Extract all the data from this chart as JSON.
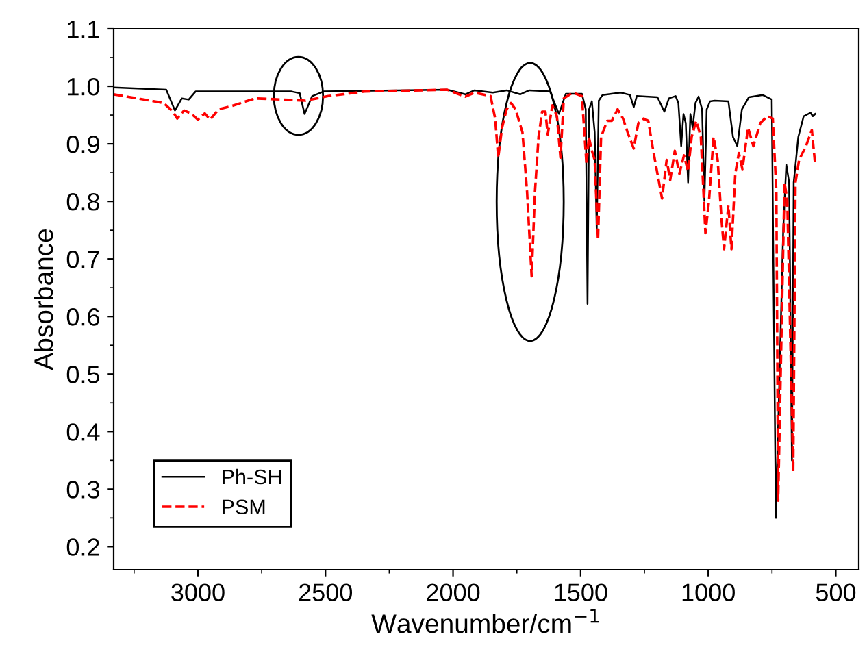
{
  "chart_data": {
    "type": "line",
    "xlabel": "Wavenumber/cm$^{−1}$",
    "ylabel": "Absorbance",
    "xlim": [
      3330,
      410
    ],
    "ylim": [
      0.16,
      1.1
    ],
    "xticks": [
      3000,
      2500,
      2000,
      1500,
      1000,
      500
    ],
    "yticks": [
      {
        "value": 0.2,
        "label": "0.2"
      },
      {
        "value": 0.3,
        "label": "0.3"
      },
      {
        "value": 0.4,
        "label": "0.4"
      },
      {
        "value": 0.5,
        "label": "0.5"
      },
      {
        "value": 0.6,
        "label": "0.6"
      },
      {
        "value": 0.7,
        "label": "0.7"
      },
      {
        "value": 0.8,
        "label": "0.8"
      },
      {
        "value": 0.9,
        "label": "0.9"
      },
      {
        "value": 1.0,
        "label": "1.0"
      },
      {
        "value": 1.1,
        "label": "1.1"
      }
    ],
    "grid": false,
    "legend": "bottom left",
    "series": [
      {
        "name": "Ph-SH",
        "color": "#000000",
        "line_style": "solid",
        "x": [
          3330,
          3124,
          3090,
          3063,
          3036,
          3009,
          2633,
          2601,
          2582,
          2552,
          2507,
          2023,
          1952,
          1916,
          1844,
          1790,
          1737,
          1701,
          1620,
          1585,
          1558,
          1495,
          1480,
          1473,
          1467,
          1456,
          1445,
          1437,
          1429,
          1414,
          1343,
          1307,
          1292,
          1280,
          1199,
          1172,
          1154,
          1128,
          1117,
          1106,
          1097,
          1088,
          1079,
          1070,
          1061,
          1050,
          1038,
          1024,
          1015,
          1006,
          993,
          975,
          921,
          903,
          886,
          868,
          841,
          787,
          751,
          735,
          706,
          694,
          683,
          672,
          665,
          647,
          626,
          599,
          590,
          581
        ],
        "values": [
          0.998,
          0.994,
          0.958,
          0.979,
          0.977,
          0.991,
          0.991,
          0.988,
          0.952,
          0.983,
          0.991,
          0.994,
          0.986,
          0.993,
          0.989,
          0.993,
          0.986,
          0.993,
          0.991,
          0.952,
          0.987,
          0.987,
          0.96,
          0.622,
          0.96,
          0.974,
          0.92,
          0.749,
          0.975,
          0.985,
          0.989,
          0.985,
          0.964,
          0.983,
          0.981,
          0.956,
          0.979,
          0.983,
          0.971,
          0.896,
          0.952,
          0.936,
          0.833,
          0.952,
          0.928,
          0.971,
          0.982,
          0.96,
          0.801,
          0.96,
          0.974,
          0.975,
          0.974,
          0.912,
          0.896,
          0.96,
          0.981,
          0.985,
          0.977,
          0.25,
          0.753,
          0.864,
          0.833,
          0.35,
          0.833,
          0.912,
          0.948,
          0.954,
          0.948,
          0.952
        ]
      },
      {
        "name": "PSM",
        "color": "#ff0000",
        "line_style": "dashed",
        "x": [
          3330,
          3134,
          3098,
          3081,
          3054,
          3027,
          3000,
          2973,
          2952,
          2919,
          2866,
          2776,
          2668,
          2579,
          2489,
          2346,
          2023,
          1952,
          1916,
          1853,
          1835,
          1823,
          1808,
          1790,
          1773,
          1755,
          1728,
          1710,
          1692,
          1679,
          1665,
          1651,
          1638,
          1629,
          1611,
          1593,
          1579,
          1566,
          1531,
          1495,
          1477,
          1468,
          1456,
          1445,
          1432,
          1420,
          1396,
          1378,
          1355,
          1334,
          1316,
          1292,
          1274,
          1253,
          1235,
          1217,
          1199,
          1181,
          1163,
          1149,
          1131,
          1113,
          1095,
          1079,
          1065,
          1047,
          1029,
          1011,
          997,
          979,
          963,
          948,
          938,
          921,
          909,
          894,
          880,
          866,
          844,
          823,
          796,
          769,
          747,
          733,
          726,
          701,
          690,
          667,
          658,
          644,
          617,
          594,
          581
        ],
        "values": [
          0.986,
          0.971,
          0.956,
          0.944,
          0.958,
          0.953,
          0.942,
          0.953,
          0.942,
          0.96,
          0.966,
          0.979,
          0.977,
          0.975,
          0.983,
          0.991,
          0.994,
          0.982,
          0.989,
          0.983,
          0.944,
          0.876,
          0.928,
          0.96,
          0.971,
          0.96,
          0.92,
          0.817,
          0.67,
          0.817,
          0.912,
          0.956,
          0.956,
          0.916,
          0.967,
          0.948,
          0.876,
          0.979,
          0.989,
          0.983,
          0.864,
          0.912,
          0.888,
          0.872,
          0.733,
          0.912,
          0.94,
          0.94,
          0.96,
          0.944,
          0.92,
          0.892,
          0.936,
          0.944,
          0.94,
          0.892,
          0.848,
          0.805,
          0.872,
          0.837,
          0.888,
          0.848,
          0.88,
          0.852,
          0.912,
          0.94,
          0.912,
          0.745,
          0.801,
          0.912,
          0.872,
          0.769,
          0.717,
          0.793,
          0.717,
          0.848,
          0.884,
          0.856,
          0.928,
          0.896,
          0.936,
          0.948,
          0.944,
          0.817,
          0.28,
          0.833,
          0.801,
          0.33,
          0.833,
          0.872,
          0.896,
          0.924,
          0.864
        ]
      }
    ]
  }
}
